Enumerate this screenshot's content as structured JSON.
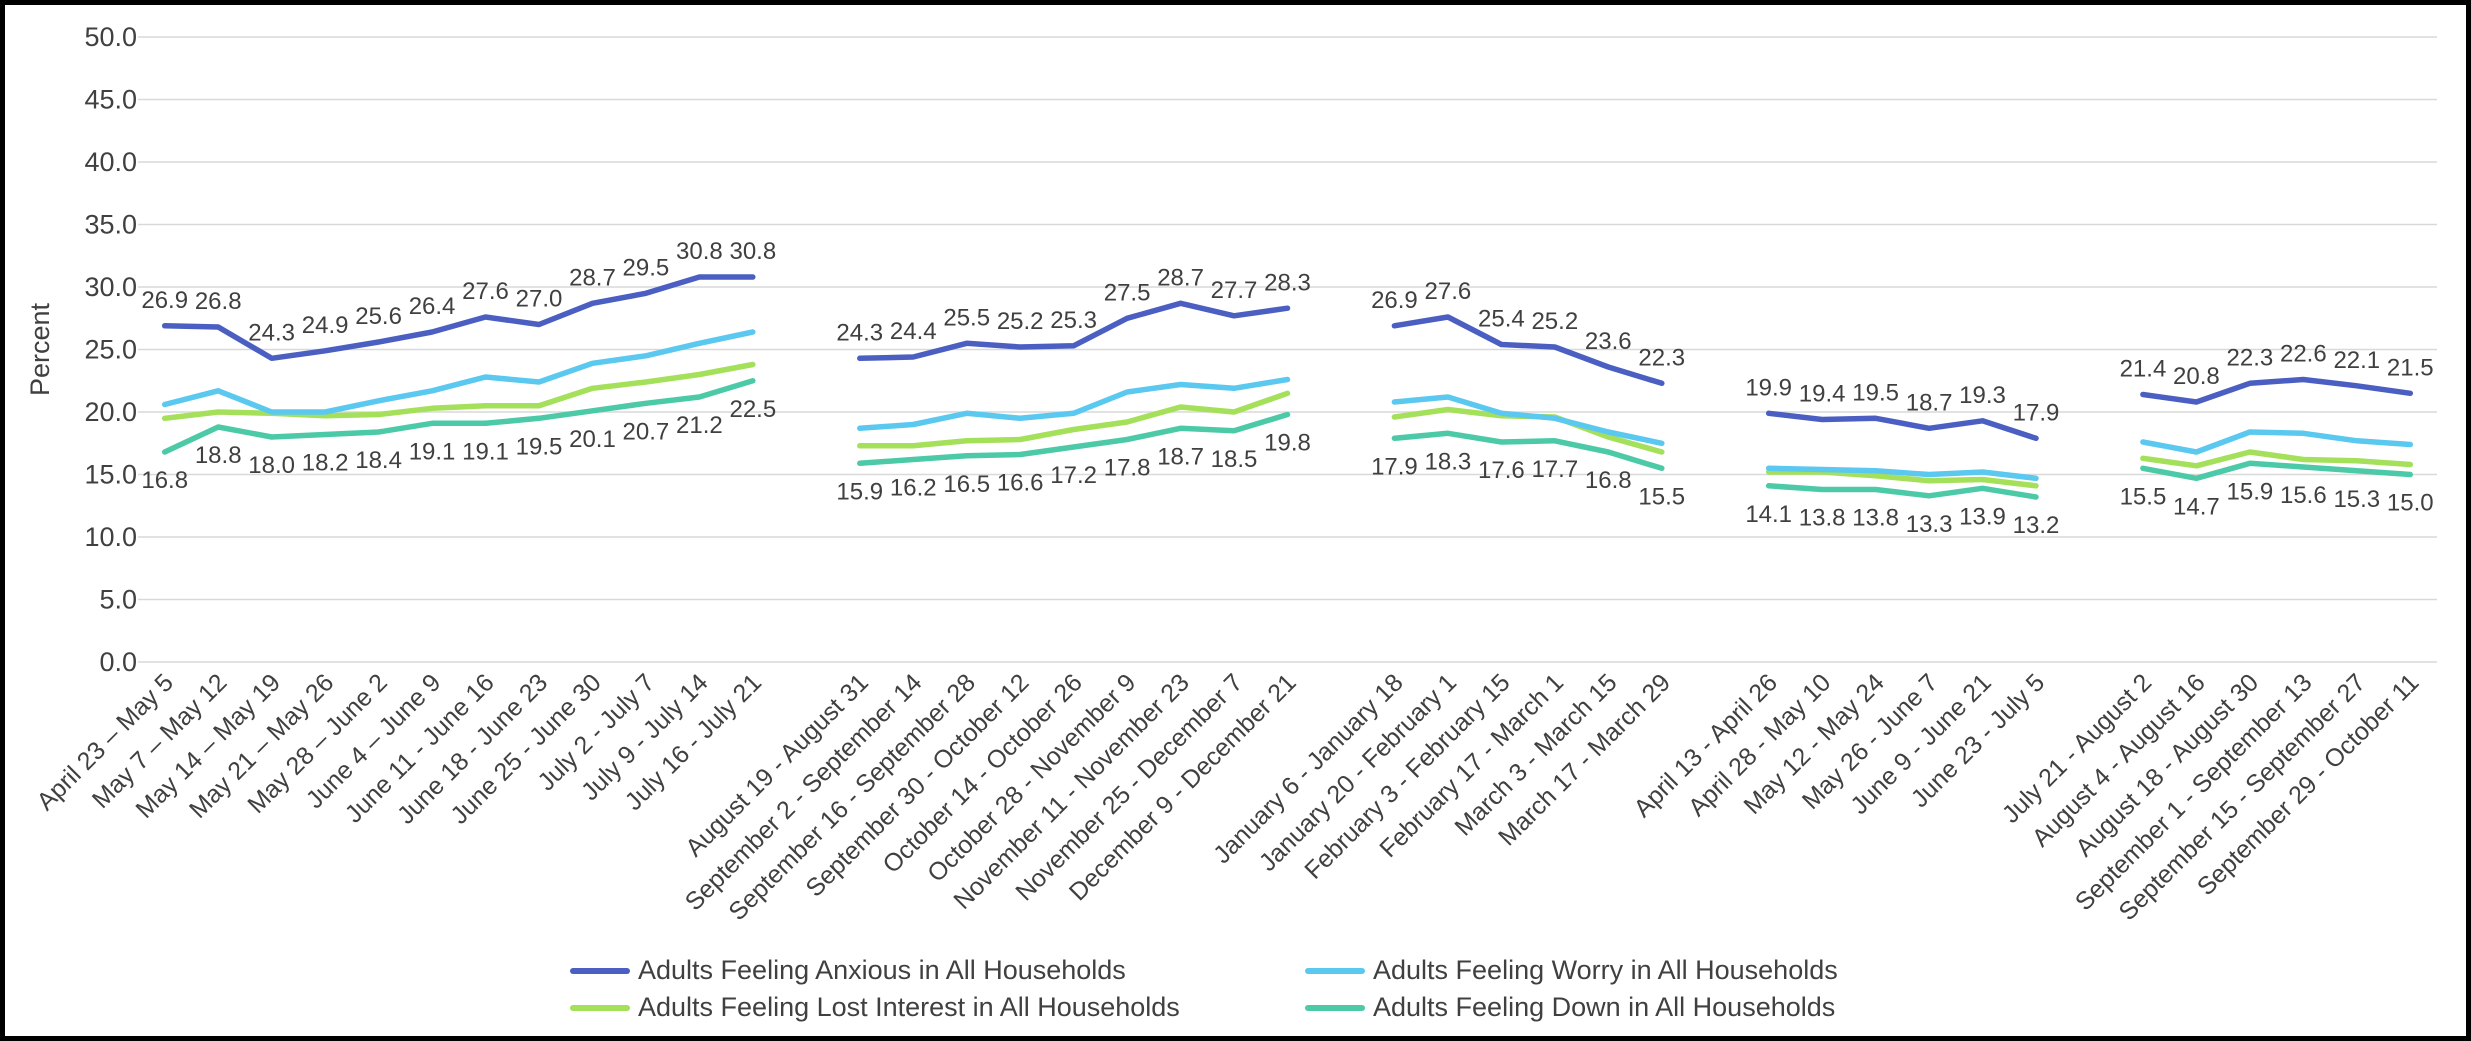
{
  "chart_data": {
    "type": "line",
    "ylabel": "Percent",
    "xlabel": "",
    "ylim": [
      0,
      50
    ],
    "yticks": [
      "0.0",
      "5.0",
      "10.0",
      "15.0",
      "20.0",
      "25.0",
      "30.0",
      "35.0",
      "40.0",
      "45.0",
      "50.0"
    ],
    "grid": true,
    "legend_position": "bottom",
    "categories": [
      "April 23 – May 5",
      "May 7 – May 12",
      "May 14 – May 19",
      "May 21 – May 26",
      "May 28 – June 2",
      "June 4 – June 9",
      "June 11 - June 16",
      "June 18 - June 23",
      "June 25 - June 30",
      "July 2 - July 7",
      "July 9 - July 14",
      "July 16 - July 21",
      "August 19 - August 31",
      "September 2 - September 14",
      "September 16 - September 28",
      "September 30 - October 12",
      "October 14 - October 26",
      "October 28 - November 9",
      "November 11 - November 23",
      "November 25 - December 7",
      "December 9 - December 21",
      "January 6 - January 18",
      "January 20 - February 1",
      "February 3 - February 15",
      "February 17 - March 1",
      "March 3 - March 15",
      "March 17 - March 29",
      "April 13 - April 26",
      "April 28 - May 10",
      "May 12 - May 24",
      "May 26 - June 7",
      "June 9 - June 21",
      "June 23 - July 5",
      "July 21 - August 2",
      "August 4 - August 16",
      "August 18 - August 30",
      "September 1 - September 13",
      "September 15 - September 27",
      "September 29 - October 11"
    ],
    "segments": [
      12,
      9,
      6,
      6,
      6
    ],
    "series": [
      {
        "name": "Adults Feeling Anxious in All Households",
        "color": "#4a5fc1",
        "values": [
          26.9,
          26.8,
          24.3,
          24.9,
          25.6,
          26.4,
          27.6,
          27.0,
          28.7,
          29.5,
          30.8,
          30.8,
          24.3,
          24.4,
          25.5,
          25.2,
          25.3,
          27.5,
          28.7,
          27.7,
          28.3,
          26.9,
          27.6,
          25.4,
          25.2,
          23.6,
          22.3,
          19.9,
          19.4,
          19.5,
          18.7,
          19.3,
          17.9,
          21.4,
          20.8,
          22.3,
          22.6,
          22.1,
          21.5
        ],
        "labels_above": true
      },
      {
        "name": "Adults Feeling Worry in All Households",
        "color": "#5bc8f0",
        "values": [
          20.6,
          21.7,
          20.0,
          20.0,
          20.9,
          21.7,
          22.8,
          22.4,
          23.9,
          24.5,
          25.5,
          26.4,
          18.7,
          19.0,
          19.9,
          19.5,
          19.9,
          21.6,
          22.2,
          21.9,
          22.6,
          20.8,
          21.2,
          19.9,
          19.5,
          18.4,
          17.5,
          15.5,
          15.4,
          15.3,
          15.0,
          15.2,
          14.7,
          17.6,
          16.8,
          18.4,
          18.3,
          17.7,
          17.4
        ],
        "labels_above": false
      },
      {
        "name": "Adults Feeling Lost Interest in All Households",
        "color": "#a5e05a",
        "values": [
          19.5,
          20.0,
          19.9,
          19.7,
          19.8,
          20.3,
          20.5,
          20.5,
          21.9,
          22.4,
          23.0,
          23.8,
          17.3,
          17.3,
          17.7,
          17.8,
          18.6,
          19.2,
          20.4,
          20.0,
          21.5,
          19.6,
          20.2,
          19.7,
          19.6,
          18.0,
          16.8,
          15.2,
          15.2,
          14.9,
          14.5,
          14.6,
          14.1,
          16.3,
          15.7,
          16.8,
          16.2,
          16.1,
          15.8
        ],
        "labels_above": false
      },
      {
        "name": "Adults Feeling Down in All Households",
        "color": "#4ccaa8",
        "values": [
          16.8,
          18.8,
          18.0,
          18.2,
          18.4,
          19.1,
          19.1,
          19.5,
          20.1,
          20.7,
          21.2,
          22.5,
          15.9,
          16.2,
          16.5,
          16.6,
          17.2,
          17.8,
          18.7,
          18.5,
          19.8,
          17.9,
          18.3,
          17.6,
          17.7,
          16.8,
          15.5,
          14.1,
          13.8,
          13.8,
          13.3,
          13.9,
          13.2,
          15.5,
          14.7,
          15.9,
          15.6,
          15.3,
          15.0
        ],
        "labels_above": false
      }
    ],
    "data_label_series": [
      "Adults Feeling Anxious in All Households",
      "Adults Feeling Down in All Households"
    ]
  }
}
